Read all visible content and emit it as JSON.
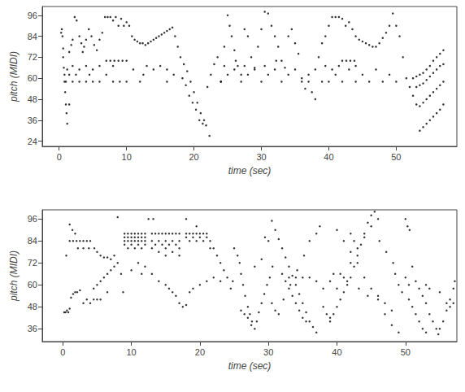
{
  "chart_data": [
    {
      "type": "scatter",
      "x_label": "time (sec)",
      "y_label": "pitch (MIDI)",
      "color": "#000000",
      "marker": "circle",
      "grid": false,
      "xlim": [
        -2.5,
        59
      ],
      "ylim": [
        21,
        101
      ],
      "xticks": [
        0,
        10,
        20,
        30,
        40,
        50
      ],
      "yticks": [
        24,
        36,
        48,
        60,
        72,
        84,
        96
      ],
      "x": [
        0.3,
        0.4,
        0.5,
        0.6,
        0.6,
        0.7,
        0.8,
        0.8,
        0.9,
        1.0,
        1.1,
        1.2,
        1.5,
        1.8,
        2.0,
        2.3,
        2.6,
        3.0,
        3.3,
        3.7,
        4.0,
        4.4,
        4.8,
        5.2,
        5.6,
        6.0,
        6.4,
        6.8,
        7.2,
        7.6,
        8.0,
        8.4,
        8.8,
        9.2,
        9.6,
        10.0,
        10.4,
        10.8,
        11.2,
        11.6,
        12.0,
        12.4,
        12.8,
        13.2,
        13.6,
        14.0,
        14.4,
        14.8,
        15.2,
        15.6,
        16.0,
        16.4,
        16.8,
        17.2,
        17.6,
        1,
        2,
        3,
        4,
        5,
        6,
        8,
        9,
        10,
        12,
        16,
        1.5,
        2.5,
        4.5,
        7,
        12.5,
        17,
        1.2,
        3,
        5,
        11,
        14,
        16,
        2,
        4,
        6,
        8,
        13,
        15,
        7,
        7.6,
        8.2,
        8.8,
        9.4,
        10,
        1.5,
        3.5,
        18,
        18.5,
        19,
        19.5,
        20,
        20.5,
        21,
        21.5,
        21.8,
        22.3,
        18.3,
        18.8,
        19.3,
        19.8,
        20.3,
        20.8,
        21.3,
        22,
        22.5,
        23,
        23.5,
        24,
        24.5,
        25,
        25.3,
        25.6,
        26,
        26.5,
        27,
        27.5,
        28,
        28.5,
        29,
        29.5,
        30,
        30.5,
        31,
        31.5,
        32,
        32.5,
        33,
        33.5,
        34,
        34.5,
        35,
        35.5,
        36,
        36.5,
        37,
        37.5,
        38,
        24,
        27,
        30,
        33,
        36,
        39,
        25,
        28,
        31,
        34,
        37,
        26,
        29,
        32,
        35,
        38,
        24.5,
        27.5,
        30.5,
        26.2,
        32.2,
        38.5,
        39,
        39.5,
        40,
        40.5,
        41,
        41.5,
        42,
        42.5,
        43,
        43.5,
        44,
        44.5,
        45,
        45.5,
        46,
        46.5,
        47,
        47.5,
        48,
        48.5,
        49,
        49.5,
        50,
        50.5,
        51,
        40,
        42,
        44,
        46,
        48,
        50,
        41,
        45,
        49,
        40.5,
        43,
        47,
        39.5,
        41.5,
        44,
        42,
        42.6,
        43.2,
        43.8,
        51.5,
        52,
        52.5,
        53,
        52.5,
        53,
        53.5,
        54,
        54.5,
        55,
        55.5,
        56,
        56.5,
        57,
        53,
        53.5,
        54,
        54.5,
        55,
        55.5,
        56,
        56.5,
        57,
        53.5,
        54,
        54.5,
        55,
        55.5,
        56,
        56.5,
        57,
        53.5,
        54,
        54.5,
        55,
        55.5,
        56,
        56.5,
        57
      ],
      "values": [
        86,
        88,
        84,
        77,
        72,
        66,
        62,
        58,
        52,
        45,
        40,
        34,
        45,
        79,
        82,
        95,
        93,
        84,
        80,
        78,
        82,
        88,
        84,
        79,
        76,
        82,
        86,
        95,
        95,
        95,
        93,
        95,
        90,
        94,
        90,
        92,
        90,
        84,
        82,
        81,
        80,
        80,
        79,
        80,
        81,
        82,
        83,
        84,
        85,
        86,
        87,
        88,
        89,
        84,
        78,
        58,
        58,
        58,
        58,
        58,
        58,
        58,
        58,
        58,
        58,
        58,
        62,
        62,
        62,
        62,
        62,
        62,
        65,
        65,
        65,
        65,
        65,
        65,
        67,
        67,
        67,
        67,
        67,
        67,
        70,
        70,
        70,
        70,
        70,
        70,
        75,
        75,
        72,
        68,
        64,
        58,
        52,
        46,
        40,
        36,
        33,
        27,
        60,
        56,
        50,
        46,
        42,
        36,
        34,
        55,
        62,
        68,
        72,
        58,
        78,
        96,
        90,
        84,
        76,
        67,
        62,
        88,
        84,
        72,
        66,
        78,
        88,
        98,
        97,
        90,
        84,
        78,
        70,
        66,
        84,
        88,
        80,
        74,
        60,
        54,
        58,
        52,
        48,
        58,
        58,
        58,
        58,
        58,
        58,
        62,
        62,
        62,
        62,
        62,
        65,
        65,
        65,
        65,
        65,
        67,
        67,
        67,
        70,
        70,
        72,
        80,
        84,
        90,
        95,
        95,
        95,
        94,
        90,
        92,
        88,
        84,
        82,
        81,
        80,
        79,
        78,
        78,
        80,
        83,
        86,
        90,
        97,
        90,
        84,
        72,
        58,
        58,
        58,
        58,
        58,
        58,
        62,
        62,
        62,
        65,
        65,
        65,
        67,
        67,
        67,
        70,
        70,
        70,
        70,
        60,
        55,
        50,
        45,
        60,
        61,
        62,
        63,
        65,
        67,
        70,
        72,
        74,
        76,
        55,
        56,
        57,
        59,
        61,
        63,
        65,
        67,
        68,
        44,
        46,
        48,
        50,
        52,
        54,
        56,
        58,
        30,
        32,
        34,
        36,
        38,
        40,
        42,
        45
      ]
    },
    {
      "type": "scatter",
      "x_label": "time (sec)",
      "y_label": "pitch (MIDI)",
      "color": "#000000",
      "marker": "circle",
      "grid": false,
      "xlim": [
        -3,
        57.5
      ],
      "ylim": [
        29,
        101
      ],
      "xticks": [
        0,
        10,
        20,
        30,
        40,
        50
      ],
      "yticks": [
        36,
        48,
        60,
        72,
        84,
        96
      ],
      "x": [
        0.2,
        0.4,
        0.6,
        0.8,
        1.0,
        1.2,
        1.5,
        1.8,
        2.1,
        2.5,
        3.0,
        3.5,
        4.0,
        4.5,
        5.0,
        5.5,
        0.5,
        1.0,
        1.4,
        1.8,
        1.0,
        1.5,
        2.0,
        2.5,
        3.0,
        3.5,
        4.0,
        2.2,
        3.0,
        3.8,
        4.6,
        5.0,
        5.5,
        6.0,
        6.5,
        7.0,
        7.5,
        4.5,
        5.0,
        5.5,
        6.0,
        6.5,
        7.0,
        7.5,
        8.0,
        8.5,
        6.5,
        8.8,
        9,
        9.5,
        10,
        10.5,
        11,
        11.5,
        12,
        9,
        9.5,
        10,
        10.5,
        11,
        11.5,
        12,
        9,
        9.5,
        10,
        10.5,
        11,
        11.5,
        12,
        9,
        10,
        11,
        12,
        9.5,
        10.5,
        11.5,
        8,
        12.5,
        13,
        13.5,
        14,
        14.5,
        15,
        15.5,
        16,
        16.5,
        17,
        13,
        14,
        15,
        16,
        17,
        13.5,
        14.5,
        15.5,
        16.5,
        13,
        15,
        17,
        14,
        16,
        15,
        17,
        13.2,
        11,
        12,
        13,
        14,
        15,
        15.5,
        16,
        16.5,
        17,
        17.5,
        18,
        18.5,
        19,
        20,
        21,
        22,
        23,
        10,
        11.5,
        18,
        18.5,
        19,
        19.5,
        20,
        20.5,
        21,
        18,
        19,
        20,
        21,
        18.5,
        19.5,
        20.5,
        21.5,
        18,
        19.5,
        21.5,
        22,
        22.5,
        23,
        23.5,
        24,
        24.5,
        24.8,
        25,
        25.5,
        25.8,
        26,
        26.3,
        26.6,
        27,
        27.3,
        27.6,
        28,
        28.3,
        28.6,
        29,
        29.4,
        29.8,
        30.2,
        30.6,
        26,
        26.5,
        27,
        27.5,
        28,
        29,
        29.5,
        30,
        30.5,
        31,
        31.5,
        30.5,
        31,
        31.5,
        32,
        32.5,
        33,
        33.5,
        34,
        34.5,
        35,
        35.5,
        36,
        36.5,
        37,
        32,
        32.5,
        33,
        33.5,
        34,
        34.5,
        35,
        35.5,
        32.2,
        33.2,
        34.2,
        35.2,
        36,
        37,
        37.5,
        33,
        34,
        35,
        36,
        37,
        38,
        38.5,
        39,
        38,
        39,
        39.5,
        39,
        39.5,
        40,
        40.5,
        41,
        41.5,
        42,
        42.5,
        43,
        43.5,
        44,
        44.5,
        45,
        45.5,
        40,
        41,
        42,
        43,
        44,
        45,
        46,
        40,
        41,
        42,
        43,
        44,
        45,
        46,
        47,
        48,
        49,
        40.5,
        41.5,
        43.2,
        44.5,
        46,
        47,
        48,
        42,
        42.5,
        46.2,
        47.2,
        48.2,
        48.5,
        49,
        49.5,
        50,
        50.3,
        50.6,
        51,
        51.5,
        52,
        52.5,
        53,
        53.5,
        54,
        54.5,
        54.8,
        55,
        55.5,
        56,
        56.5,
        57,
        57.2,
        50.5,
        51,
        51.5,
        52,
        52.5,
        53,
        50,
        50.5,
        53,
        53.5,
        55,
        56,
        56.5,
        57
      ],
      "values": [
        45,
        45,
        46,
        45,
        47,
        53,
        55,
        56,
        56,
        57,
        50,
        52,
        50,
        52,
        52,
        52,
        76,
        93,
        90,
        88,
        84,
        84,
        84,
        84,
        84,
        84,
        84,
        80,
        80,
        80,
        80,
        78,
        76,
        75,
        75,
        74,
        76,
        58,
        60,
        62,
        64,
        66,
        68,
        70,
        72,
        66,
        56,
        56,
        88,
        88,
        88,
        88,
        88,
        88,
        88,
        86,
        86,
        86,
        86,
        86,
        86,
        86,
        84,
        84,
        84,
        84,
        84,
        84,
        84,
        82,
        82,
        82,
        82,
        80,
        80,
        80,
        97,
        96,
        88,
        88,
        88,
        88,
        88,
        88,
        88,
        88,
        88,
        84,
        84,
        84,
        84,
        84,
        82,
        82,
        82,
        82,
        80,
        80,
        80,
        78,
        78,
        76,
        76,
        96,
        72,
        70,
        66,
        62,
        60,
        58,
        56,
        54,
        50,
        48,
        49,
        56,
        58,
        60,
        62,
        64,
        62,
        68,
        66,
        88,
        88,
        88,
        88,
        88,
        88,
        88,
        86,
        86,
        86,
        86,
        84,
        84,
        84,
        84,
        96,
        92,
        80,
        80,
        76,
        72,
        68,
        64,
        58,
        62,
        80,
        76,
        72,
        66,
        60,
        54,
        48,
        44,
        40,
        36,
        40,
        45,
        50,
        55,
        60,
        64,
        70,
        46,
        44,
        42,
        38,
        70,
        74,
        86,
        84,
        50,
        46,
        44,
        95,
        90,
        85,
        80,
        75,
        70,
        65,
        60,
        55,
        50,
        45,
        40,
        37,
        34,
        66,
        62,
        58,
        54,
        50,
        46,
        42,
        40,
        52,
        60,
        68,
        76,
        84,
        88,
        92,
        64,
        64,
        64,
        64,
        62,
        48,
        44,
        42,
        58,
        62,
        66,
        40,
        44,
        48,
        52,
        56,
        60,
        64,
        70,
        76,
        82,
        88,
        94,
        98,
        100,
        58,
        64,
        72,
        80,
        86,
        92,
        96,
        90,
        84,
        78,
        72,
        64,
        58,
        52,
        44,
        38,
        34,
        66,
        62,
        58,
        54,
        54,
        50,
        46,
        88,
        84,
        84,
        78,
        72,
        66,
        60,
        56,
        96,
        92,
        90,
        70,
        62,
        58,
        54,
        50,
        44,
        40,
        36,
        33,
        36,
        40,
        46,
        52,
        58,
        62,
        52,
        48,
        44,
        40,
        36,
        34,
        64,
        60,
        60,
        58,
        56,
        50,
        48,
        50
      ]
    }
  ]
}
